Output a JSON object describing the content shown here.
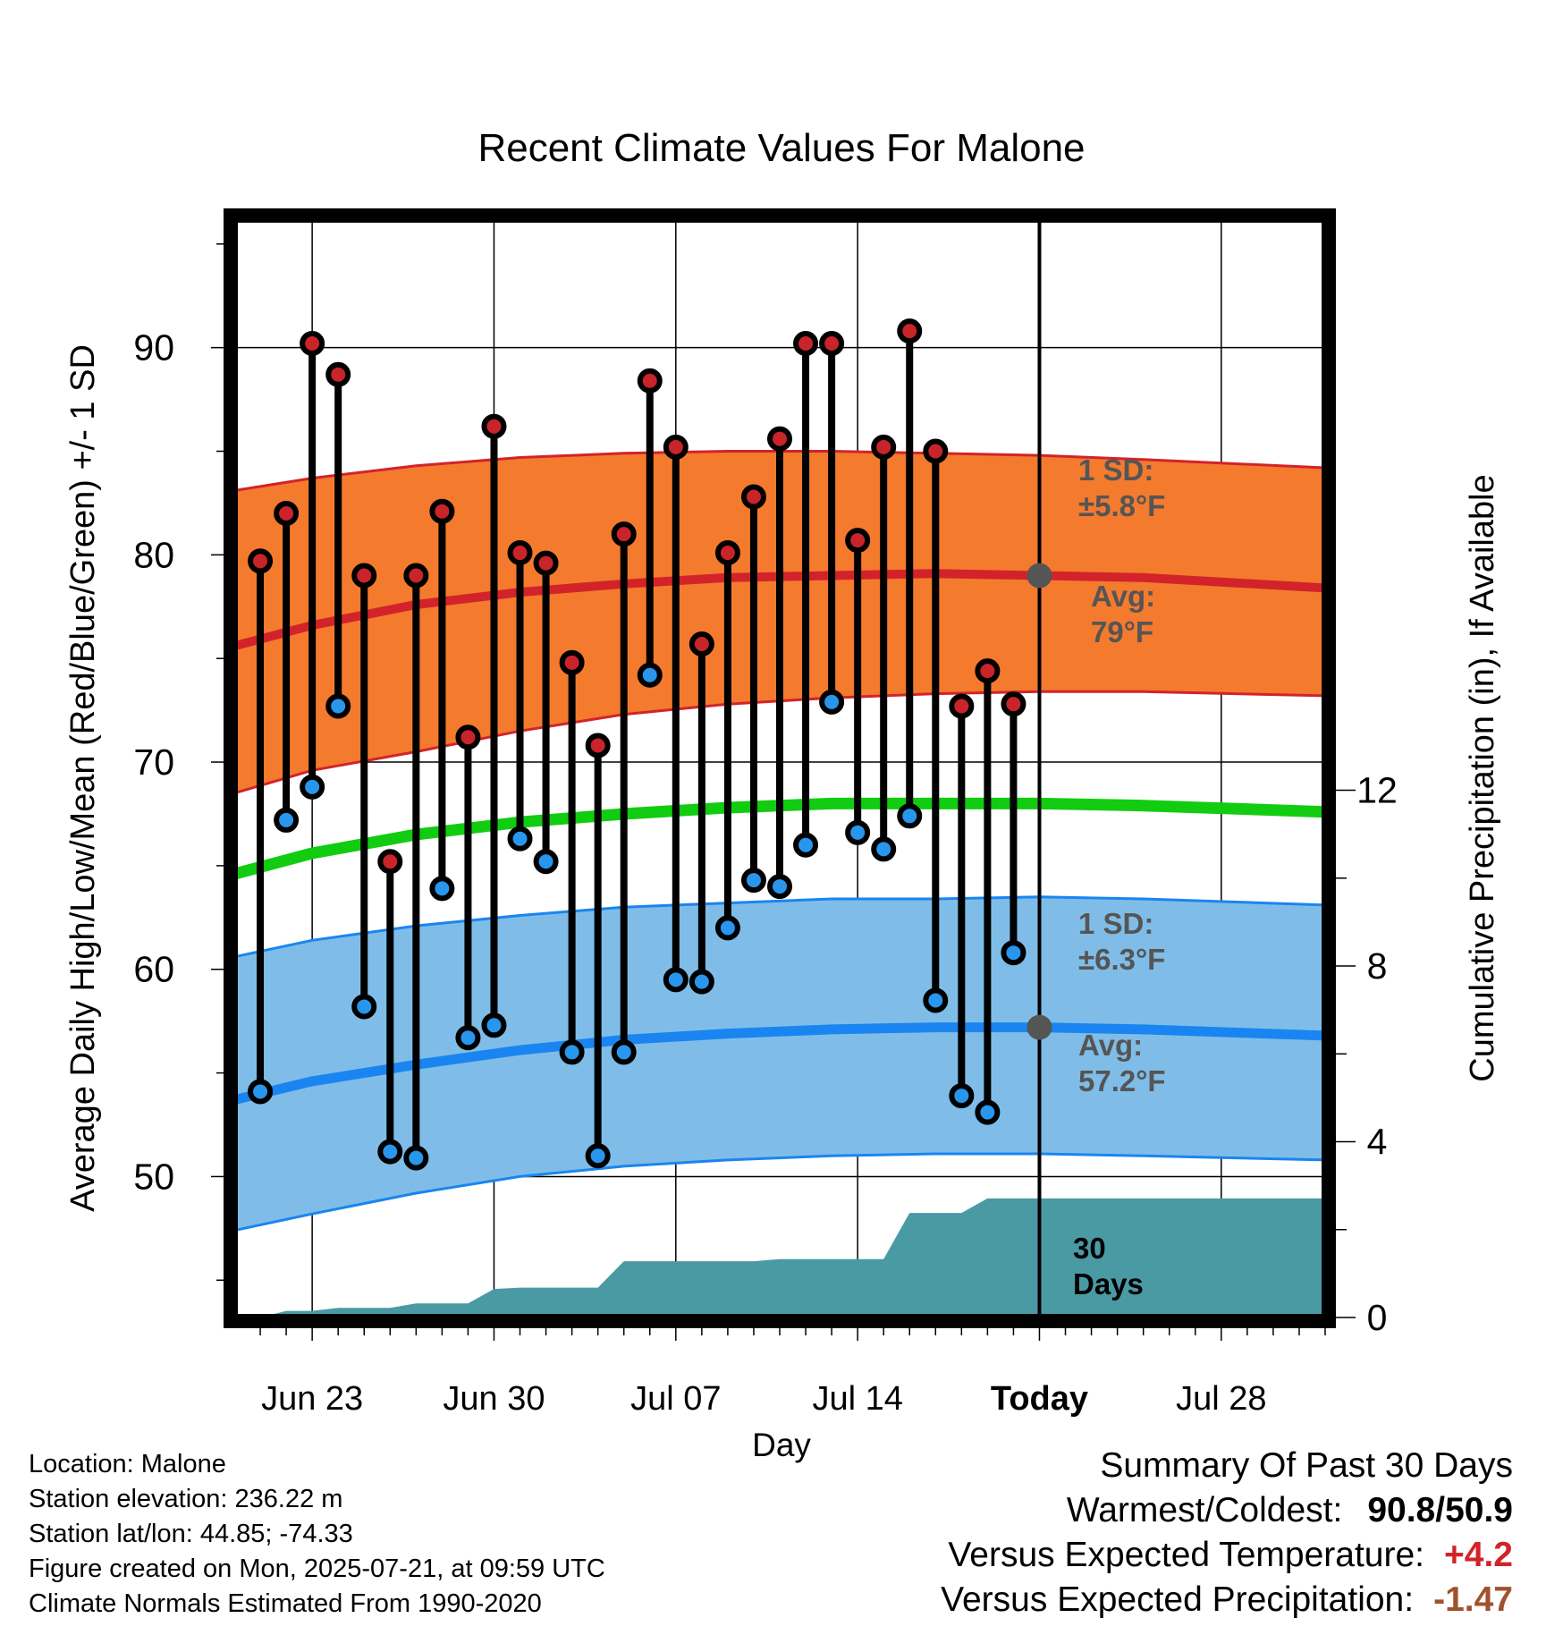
{
  "colors": {
    "high_band": "#f47a2e",
    "high_line": "#d2232a",
    "low_band": "#7fbde8",
    "low_line": "#1a85f0",
    "mean_line": "#11cc11",
    "precip": "#4a9aa4",
    "high_marker": "#c8242a",
    "low_marker": "#2996ee",
    "annotation": "#555555",
    "temp_diff": "#d2232a",
    "precip_diff": "#a0522d"
  },
  "chart_data": {
    "type": "line",
    "title": "Recent Climate Values For Malone",
    "xlabel": "Day",
    "ylabel": "Average Daily High/Low/Mean (Red/Blue/Green) +/- 1 SD",
    "ylabel_right": "Cumulative Precipitation (in), If Available",
    "ylim": [
      43.2,
      96.2
    ],
    "ylim_right": [
      0,
      25
    ],
    "x_range": [
      "2025-06-20",
      "2025-08-01"
    ],
    "today": "2025-07-21",
    "x_ticks": [
      {
        "date": "2025-06-23",
        "label": "Jun 23"
      },
      {
        "date": "2025-06-30",
        "label": "Jun 30"
      },
      {
        "date": "2025-07-07",
        "label": "Jul 07"
      },
      {
        "date": "2025-07-14",
        "label": "Jul 14"
      },
      {
        "date": "2025-07-21",
        "label": "Today"
      },
      {
        "date": "2025-07-28",
        "label": "Jul 28"
      }
    ],
    "y_ticks": [
      50,
      60,
      70,
      80,
      90
    ],
    "y_ticks_right": [
      0,
      4,
      8,
      12
    ],
    "grid": true,
    "normals": {
      "dates": [
        "2025-06-20",
        "2025-06-23",
        "2025-06-27",
        "2025-07-01",
        "2025-07-05",
        "2025-07-09",
        "2025-07-13",
        "2025-07-17",
        "2025-07-21",
        "2025-07-25",
        "2025-08-01"
      ],
      "avg_high": [
        75.6,
        76.6,
        77.6,
        78.2,
        78.6,
        78.9,
        79.0,
        79.1,
        79.0,
        78.9,
        78.4
      ],
      "high_sd_upper": [
        83.1,
        83.7,
        84.3,
        84.7,
        84.9,
        85.0,
        85.0,
        84.9,
        84.8,
        84.6,
        84.2
      ],
      "high_sd_lower": [
        68.5,
        69.6,
        70.5,
        71.5,
        72.3,
        72.8,
        73.1,
        73.3,
        73.4,
        73.4,
        73.2
      ],
      "avg_mean": [
        64.6,
        65.6,
        66.5,
        67.1,
        67.5,
        67.8,
        68.0,
        68.0,
        68.0,
        67.9,
        67.6
      ],
      "avg_low": [
        53.7,
        54.6,
        55.4,
        56.1,
        56.6,
        56.9,
        57.1,
        57.2,
        57.2,
        57.1,
        56.8
      ],
      "low_sd_upper": [
        60.6,
        61.4,
        62.1,
        62.6,
        63.0,
        63.2,
        63.4,
        63.4,
        63.5,
        63.4,
        63.1
      ],
      "low_sd_lower": [
        47.4,
        48.2,
        49.2,
        50.0,
        50.5,
        50.8,
        51.0,
        51.1,
        51.1,
        51.0,
        50.8
      ]
    },
    "daily": {
      "dates": [
        "2025-06-21",
        "2025-06-22",
        "2025-06-23",
        "2025-06-24",
        "2025-06-25",
        "2025-06-26",
        "2025-06-27",
        "2025-06-28",
        "2025-06-29",
        "2025-06-30",
        "2025-07-01",
        "2025-07-02",
        "2025-07-03",
        "2025-07-04",
        "2025-07-05",
        "2025-07-06",
        "2025-07-07",
        "2025-07-08",
        "2025-07-09",
        "2025-07-10",
        "2025-07-11",
        "2025-07-12",
        "2025-07-13",
        "2025-07-14",
        "2025-07-15",
        "2025-07-16",
        "2025-07-17",
        "2025-07-18",
        "2025-07-19",
        "2025-07-20"
      ],
      "high": [
        79.7,
        82.0,
        90.2,
        88.7,
        79.0,
        65.2,
        79.0,
        82.1,
        71.2,
        86.2,
        80.1,
        79.6,
        74.8,
        70.8,
        81.0,
        88.4,
        85.2,
        75.7,
        80.1,
        82.8,
        85.6,
        90.2,
        90.2,
        80.7,
        85.2,
        90.8,
        85.0,
        72.7,
        74.4,
        72.8
      ],
      "low": [
        54.1,
        67.2,
        68.8,
        72.7,
        58.2,
        51.2,
        50.9,
        63.9,
        56.7,
        57.3,
        66.3,
        65.2,
        56.0,
        51.0,
        56.0,
        74.2,
        59.5,
        59.4,
        62.0,
        64.3,
        64.0,
        66.0,
        72.9,
        66.6,
        65.8,
        67.4,
        58.5,
        53.9,
        53.1,
        60.8
      ]
    },
    "cumulative_precip": {
      "dates": [
        "2025-06-20",
        "2025-06-21",
        "2025-06-22",
        "2025-06-23",
        "2025-06-24",
        "2025-06-25",
        "2025-06-26",
        "2025-06-27",
        "2025-06-28",
        "2025-06-29",
        "2025-06-30",
        "2025-07-01",
        "2025-07-02",
        "2025-07-03",
        "2025-07-04",
        "2025-07-05",
        "2025-07-06",
        "2025-07-07",
        "2025-07-08",
        "2025-07-09",
        "2025-07-10",
        "2025-07-11",
        "2025-07-12",
        "2025-07-13",
        "2025-07-14",
        "2025-07-15",
        "2025-07-16",
        "2025-07-17",
        "2025-07-18",
        "2025-07-19",
        "2025-07-20",
        "2025-07-21",
        "2025-08-01"
      ],
      "values": [
        0.0,
        0.0,
        0.15,
        0.15,
        0.22,
        0.22,
        0.22,
        0.32,
        0.32,
        0.32,
        0.65,
        0.68,
        0.68,
        0.68,
        0.68,
        1.28,
        1.28,
        1.28,
        1.28,
        1.28,
        1.28,
        1.33,
        1.33,
        1.33,
        1.33,
        1.33,
        2.38,
        2.38,
        2.38,
        2.71,
        2.71,
        2.71,
        2.71
      ]
    },
    "annotations": {
      "high_sd": [
        "1 SD:",
        "±5.8°F"
      ],
      "high_avg": [
        "Avg:",
        "79°F"
      ],
      "low_sd": [
        "1 SD:",
        "±6.3°F"
      ],
      "low_avg": [
        "Avg:",
        "57.2°F"
      ],
      "today_avg_high": 79.0,
      "today_avg_low": 57.2,
      "period": [
        "30",
        "Days"
      ]
    }
  },
  "info": {
    "location": "Location: Malone",
    "elevation": "Station elevation: 236.22 m",
    "latlon": "Station lat/lon: 44.85; -74.33",
    "created": "Figure created on Mon, 2025-07-21, at 09:59 UTC",
    "normals": "Climate Normals Estimated From 1990-2020"
  },
  "summary": {
    "title": "Summary Of Past 30 Days",
    "warm_cold_label": "Warmest/Coldest:",
    "warmest": "90.8",
    "slash": "/",
    "coldest": "50.9",
    "temp_label": "Versus Expected Temperature:",
    "temp_value": "+4.2",
    "precip_label": "Versus Expected Precipitation:",
    "precip_value": "-1.47"
  }
}
